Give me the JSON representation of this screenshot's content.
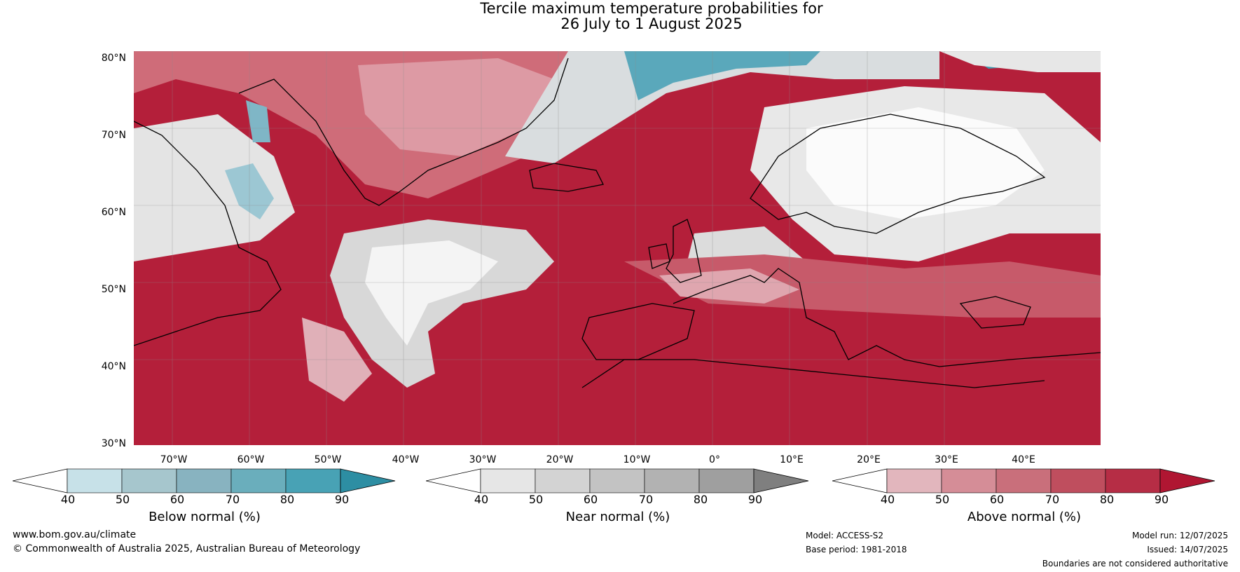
{
  "title_line1": "Tercile maximum temperature probabilities for",
  "title_line2": "26 July to 1 August 2025",
  "map": {
    "lat_labels": [
      "80°N",
      "70°N",
      "60°N",
      "50°N",
      "40°N",
      "30°N"
    ],
    "lon_labels": [
      "70°W",
      "60°W",
      "50°W",
      "40°W",
      "30°W",
      "20°W",
      "10°W",
      "0°",
      "10°E",
      "20°E",
      "30°E",
      "40°E"
    ],
    "colors": {
      "above_dark": "#b41f3a",
      "above_mid": "#d07480",
      "above_light": "#e2b4bb",
      "near_light": "#e6e6e6",
      "near_mid": "#cdcdcd",
      "below_light": "#c6dfe6",
      "below_dark": "#2e90a6"
    }
  },
  "colorbars": [
    {
      "label": "Below normal (%)",
      "ticks": [
        "40",
        "50",
        "60",
        "70",
        "80",
        "90"
      ],
      "colors": [
        "#ffffff",
        "#c7e1e8",
        "#a6c6cd",
        "#88b3c0",
        "#6aaebc",
        "#48a2b5",
        "#2d8ea3"
      ]
    },
    {
      "label": "Near normal (%)",
      "ticks": [
        "40",
        "50",
        "60",
        "70",
        "80",
        "90"
      ],
      "colors": [
        "#ffffff",
        "#e6e6e6",
        "#d3d3d3",
        "#c3c3c3",
        "#b2b2b2",
        "#9f9f9f",
        "#7f7f7f"
      ]
    },
    {
      "label": "Above normal (%)",
      "ticks": [
        "40",
        "50",
        "60",
        "70",
        "80",
        "90"
      ],
      "colors": [
        "#ffffff",
        "#e2b6bd",
        "#d58d97",
        "#c96f7b",
        "#bf4e5e",
        "#b62d45",
        "#b01632"
      ]
    }
  ],
  "footer": {
    "website": "www.bom.gov.au/climate",
    "copyright": "© Commonwealth of Australia 2025, Australian Bureau of Meteorology",
    "model": "Model: ACCESS-S2",
    "base_period": "Base period: 1981-2018",
    "model_run": "Model run: 12/07/2025",
    "issued": "Issued: 14/07/2025",
    "disclaimer": "Boundaries are not considered authoritative"
  }
}
